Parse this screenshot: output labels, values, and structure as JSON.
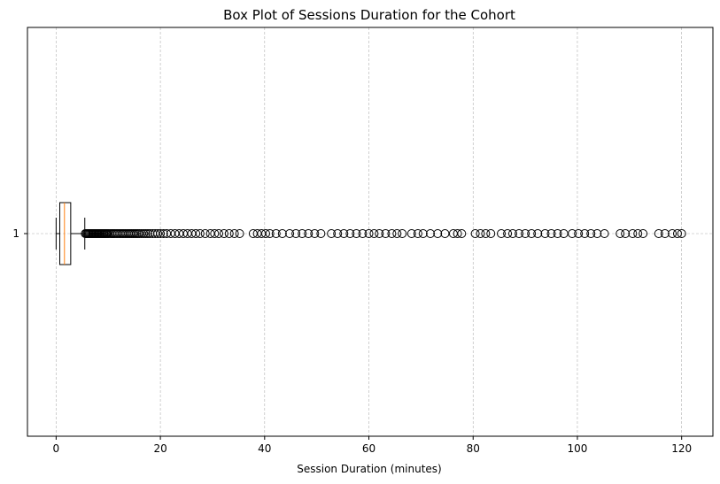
{
  "chart_data": {
    "type": "boxplot",
    "orientation": "horizontal",
    "title": "Box Plot of Sessions Duration for the Cohort",
    "xlabel": "Session Duration (minutes)",
    "ylabel": "",
    "xlim": [
      -5.5,
      126
    ],
    "x_ticks": [
      0,
      20,
      40,
      60,
      80,
      100,
      120
    ],
    "y_ticks": [
      "1"
    ],
    "grid": true,
    "colors": {
      "box": "#000000",
      "median": "#ff7f0e",
      "grid": "#b0b0b0",
      "flier": "#000000"
    },
    "boxes": [
      {
        "label": "1",
        "whisker_low": 0.0,
        "q1": 0.7,
        "median": 1.6,
        "q3": 2.8,
        "whisker_high": 5.5,
        "outliers": [
          5.6,
          5.8,
          6.0,
          6.2,
          6.4,
          6.6,
          6.8,
          7.0,
          7.2,
          7.4,
          7.6,
          7.8,
          8.0,
          8.2,
          8.4,
          8.6,
          8.8,
          9.0,
          9.2,
          9.4,
          9.6,
          9.8,
          10.0,
          10.3,
          10.6,
          10.9,
          11.2,
          11.5,
          11.8,
          12.1,
          12.4,
          12.7,
          13.0,
          13.3,
          13.6,
          13.9,
          14.2,
          14.5,
          14.8,
          15.1,
          15.4,
          15.7,
          16.0,
          16.4,
          16.8,
          17.2,
          17.6,
          18.0,
          18.5,
          19.0,
          19.5,
          20.0,
          20.6,
          21.2,
          22.0,
          22.8,
          23.6,
          24.4,
          25.2,
          26.0,
          26.8,
          27.6,
          28.6,
          29.6,
          30.4,
          31.2,
          32.2,
          33.2,
          34.2,
          35.2,
          37.8,
          38.6,
          39.4,
          40.2,
          41.0,
          42.2,
          43.4,
          44.8,
          46.0,
          47.2,
          48.4,
          49.6,
          50.8,
          52.8,
          54.0,
          55.2,
          56.4,
          57.6,
          58.8,
          60.0,
          61.0,
          62.0,
          63.2,
          64.4,
          65.4,
          66.4,
          68.2,
          69.4,
          70.4,
          71.8,
          73.2,
          74.6,
          76.2,
          77.0,
          77.8,
          80.4,
          81.4,
          82.4,
          83.4,
          85.4,
          86.6,
          87.6,
          88.8,
          90.0,
          91.2,
          92.4,
          93.8,
          95.0,
          96.2,
          97.4,
          99.0,
          100.2,
          101.4,
          102.6,
          103.8,
          105.2,
          108.2,
          109.2,
          110.6,
          111.6,
          112.6,
          115.6,
          116.8,
          118.2,
          119.2,
          120.0
        ]
      }
    ]
  }
}
